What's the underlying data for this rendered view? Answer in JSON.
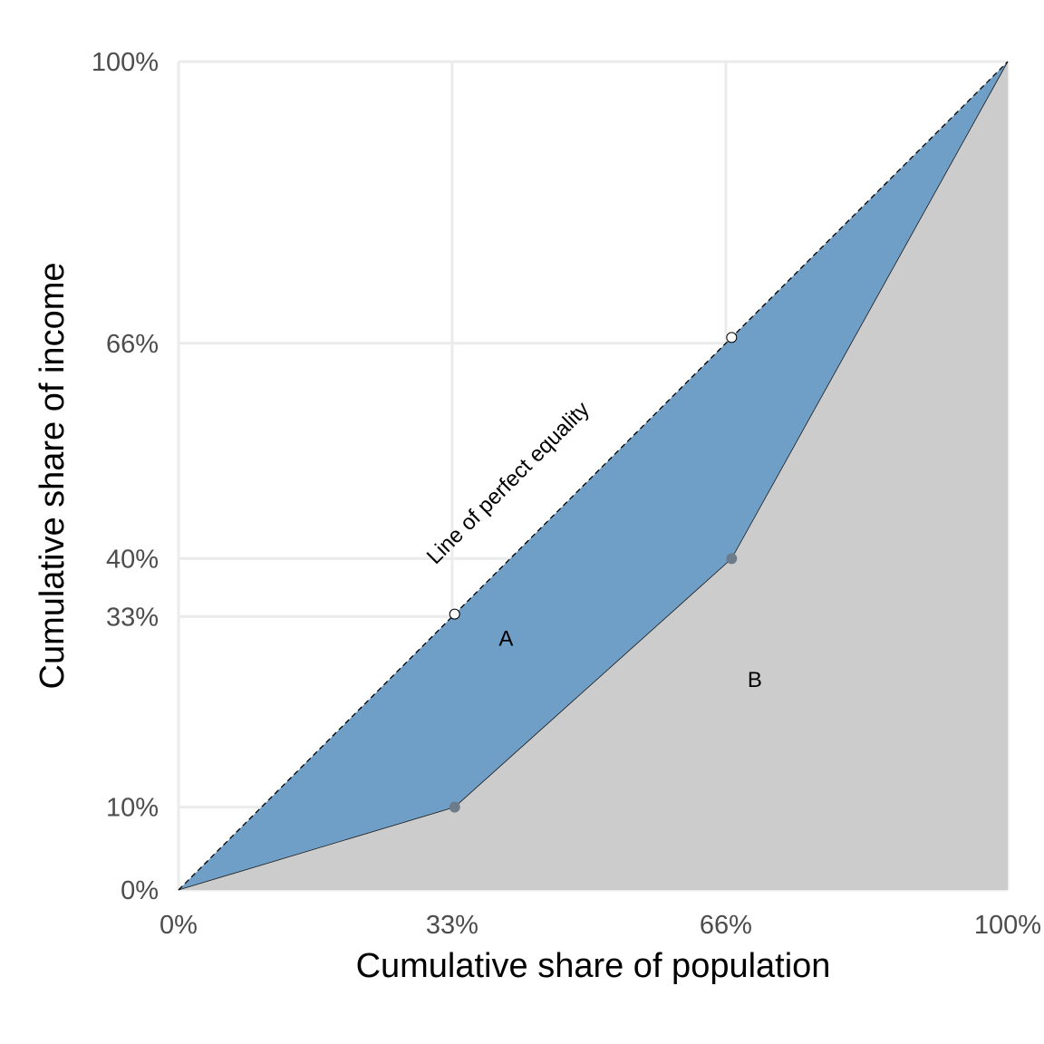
{
  "chart_data": {
    "type": "area",
    "xlabel": "Cumulative share of population",
    "ylabel": "Cumulative share of income",
    "xlim": [
      0,
      100
    ],
    "ylim": [
      0,
      100
    ],
    "x_ticks": [
      0,
      33,
      66,
      100
    ],
    "x_tick_labels": [
      "0%",
      "33%",
      "66%",
      "100%"
    ],
    "y_ticks": [
      0,
      10,
      33,
      40,
      66,
      100
    ],
    "y_tick_labels": [
      "0%",
      "10%",
      "33%",
      "40%",
      "66%",
      "100%"
    ],
    "grid": true,
    "series": [
      {
        "role": "equality_line",
        "x": [
          0,
          33.3,
          66.7,
          100
        ],
        "y": [
          0,
          33.3,
          66.7,
          100
        ]
      },
      {
        "role": "lorenz_curve",
        "x": [
          0,
          33.3,
          66.7,
          100
        ],
        "y": [
          0,
          10,
          40,
          100
        ]
      }
    ],
    "annotations": [
      {
        "text": "Line of perfect equality",
        "x": 31,
        "y": 39.2,
        "rotation_along": "equality_line"
      },
      {
        "text": "A",
        "x": 39.5,
        "y": 29.5
      },
      {
        "text": "B",
        "x": 69.5,
        "y": 24.5
      }
    ],
    "colors": {
      "area_a": "#6f9fc7",
      "area_b": "#cccccc",
      "grid": "#ebebeb",
      "points": "#6c7c8a"
    }
  }
}
